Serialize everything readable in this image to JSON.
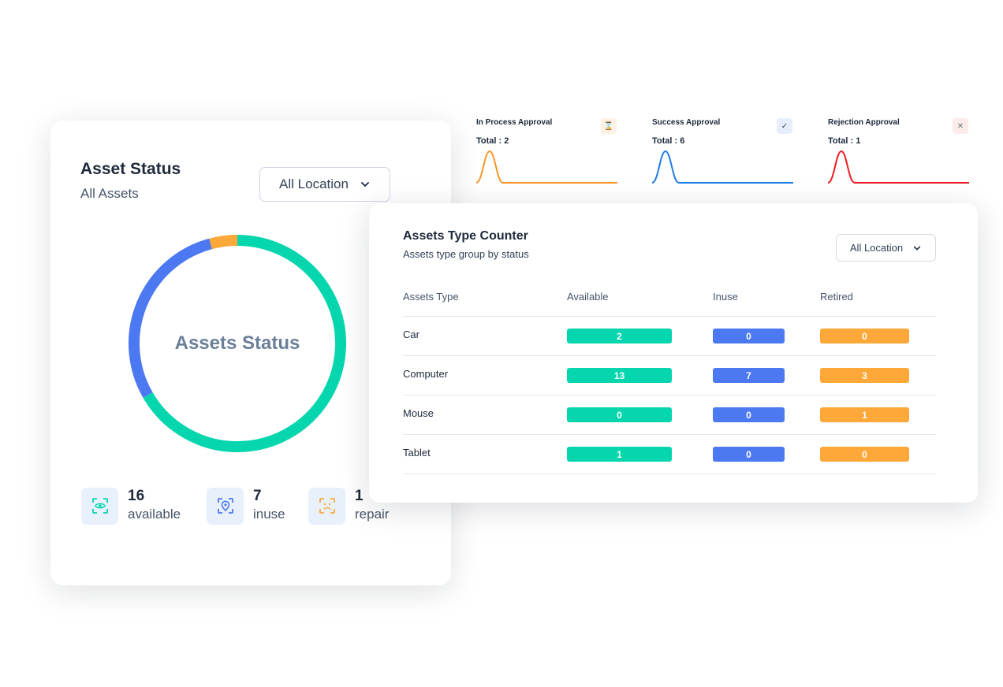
{
  "asset_status": {
    "title": "Asset Status",
    "subtitle": "All Assets",
    "location_select": "All Location",
    "donut_center": "Assets Status",
    "donut_segments": [
      {
        "name": "available",
        "value": 16,
        "color": "#06d6ae"
      },
      {
        "name": "inuse",
        "value": 7,
        "color": "#4c79f2"
      },
      {
        "name": "repair",
        "value": 1,
        "color": "#fda839"
      }
    ],
    "stats": [
      {
        "value": "16",
        "label": "available",
        "icon": "scan-eye-icon",
        "color": "#06d6ae"
      },
      {
        "value": "7",
        "label": "inuse",
        "icon": "scan-location-icon",
        "color": "#4c79f2"
      },
      {
        "value": "1",
        "label": "repair",
        "icon": "scan-face-icon",
        "color": "#fda839"
      }
    ]
  },
  "approvals": [
    {
      "title": "In Process Approval",
      "total": "Total : 2",
      "icon": "hourglass-icon",
      "icon_char": "⌛",
      "color": "#f7962b",
      "icon_bg": "#fdf1e3"
    },
    {
      "title": "Success Approval",
      "total": "Total : 6",
      "icon": "check-icon",
      "icon_char": "✓",
      "color": "#1e7be6",
      "icon_bg": "#e6eefb"
    },
    {
      "title": "Rejection Approval",
      "total": "Total : 1",
      "icon": "close-icon",
      "icon_char": "✕",
      "color": "#ec1c24",
      "icon_bg": "#fbeceb"
    }
  ],
  "assets_type_counter": {
    "title": "Assets Type Counter",
    "subtitle": "Assets type group by status",
    "location_select": "All Location",
    "columns": [
      "Assets Type",
      "Available",
      "Inuse",
      "Retired"
    ],
    "rows": [
      {
        "type": "Car",
        "available": "2",
        "inuse": "0",
        "retired": "0"
      },
      {
        "type": "Computer",
        "available": "13",
        "inuse": "7",
        "retired": "3"
      },
      {
        "type": "Mouse",
        "available": "0",
        "inuse": "0",
        "retired": "1"
      },
      {
        "type": "Tablet",
        "available": "1",
        "inuse": "0",
        "retired": "0"
      }
    ]
  }
}
